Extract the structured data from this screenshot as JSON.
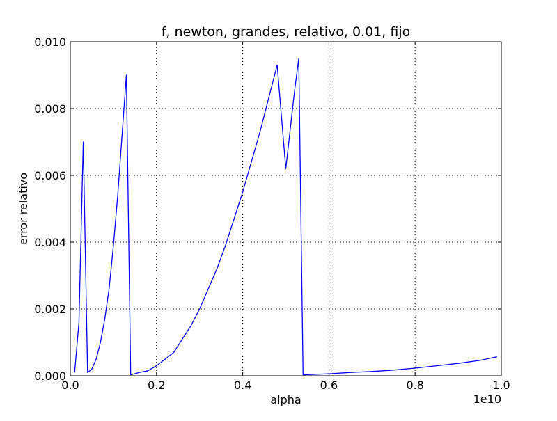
{
  "chart_data": {
    "type": "line",
    "title": "f, newton, grandes, relativo, 0.01, fijo",
    "xlabel": "alpha",
    "ylabel": "error relativo",
    "x_offset_label": "1e10",
    "xlim": [
      0,
      1.0
    ],
    "ylim": [
      0,
      0.01
    ],
    "grid": true,
    "x_ticks": [
      {
        "value": 0.0,
        "label": "0.0"
      },
      {
        "value": 0.2,
        "label": "0.2"
      },
      {
        "value": 0.4,
        "label": "0.4"
      },
      {
        "value": 0.6,
        "label": "0.6"
      },
      {
        "value": 0.8,
        "label": "0.8"
      },
      {
        "value": 1.0,
        "label": "1.0"
      }
    ],
    "y_ticks": [
      {
        "value": 0.0,
        "label": "0.000"
      },
      {
        "value": 0.002,
        "label": "0.002"
      },
      {
        "value": 0.004,
        "label": "0.004"
      },
      {
        "value": 0.006,
        "label": "0.006"
      },
      {
        "value": 0.008,
        "label": "0.008"
      },
      {
        "value": 0.01,
        "label": "0.010"
      }
    ],
    "series": [
      {
        "color": "#0000ff",
        "x": [
          0.01,
          0.02,
          0.03,
          0.04,
          0.05,
          0.06,
          0.07,
          0.08,
          0.09,
          0.1,
          0.11,
          0.12,
          0.13,
          0.14,
          0.16,
          0.18,
          0.2,
          0.22,
          0.24,
          0.26,
          0.28,
          0.3,
          0.32,
          0.34,
          0.36,
          0.38,
          0.4,
          0.42,
          0.44,
          0.46,
          0.48,
          0.5,
          0.52,
          0.53,
          0.54,
          0.56,
          0.6,
          0.65,
          0.7,
          0.75,
          0.8,
          0.85,
          0.9,
          0.95,
          0.99
        ],
        "y": [
          0.0001,
          0.0016,
          0.007,
          0.0001,
          0.0002,
          0.0005,
          0.001,
          0.0017,
          0.0026,
          0.0039,
          0.0054,
          0.0072,
          0.009,
          3e-05,
          0.0001,
          0.00015,
          0.0003,
          0.0005,
          0.0007,
          0.0011,
          0.0015,
          0.002,
          0.0026,
          0.0032,
          0.0039,
          0.0047,
          0.0055,
          0.0064,
          0.0073,
          0.0083,
          0.0093,
          0.0062,
          0.0085,
          0.0095,
          3e-05,
          4e-05,
          6e-05,
          0.0001,
          0.00013,
          0.00017,
          0.00023,
          0.0003,
          0.00037,
          0.00046,
          0.00057
        ]
      }
    ]
  }
}
